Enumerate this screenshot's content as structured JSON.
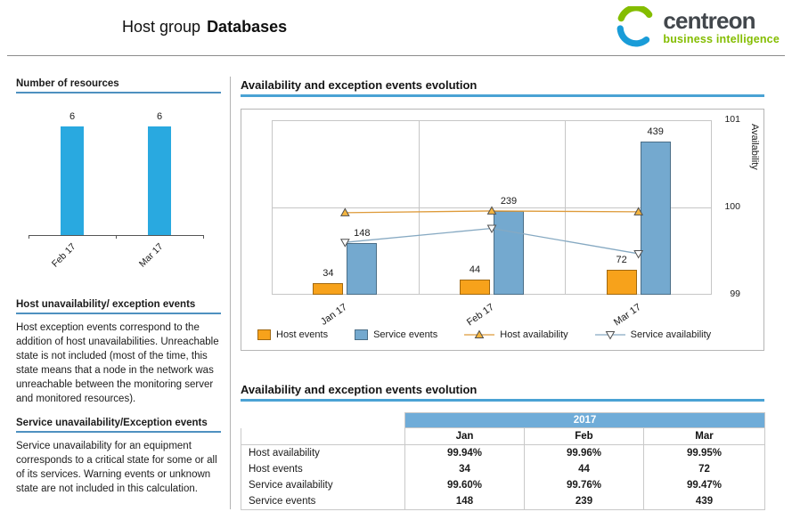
{
  "header": {
    "title_prefix": "Host group",
    "title_name": "Databases",
    "logo": {
      "brand": "centreon",
      "tagline": "business intelligence",
      "brand_color": "#42474c",
      "tagline_color": "#84BD00",
      "mark_green": "#84BD00",
      "mark_blue": "#199CD8"
    }
  },
  "sidebar": {
    "resources_title": "Number of resources",
    "host_events_title": "Host unavailability/ exception events",
    "host_events_body": "Host exception events correspond to the addition of host unavailabilities. Unreachable state is not included (most of the time, this state means that a node in the network was unreachable between the monitoring server and monitored resources).",
    "service_events_title": "Service unavailability/Exception events",
    "service_events_body": "Service unavailability for an equipment corresponds to a critical state for some or all of its services. Warning events or unknown state are not included in this calculation."
  },
  "main": {
    "chart_section_title": "Availability and exception events evolution",
    "table_section_title": "Availability and exception events evolution"
  },
  "chart_data": [
    {
      "type": "bar",
      "title": "Number of resources",
      "categories": [
        "Feb 17",
        "Mar 17"
      ],
      "values": [
        6,
        6
      ],
      "bar_color": "#29A9E0",
      "ylim": [
        0,
        6
      ]
    },
    {
      "type": "bar",
      "title": "Availability and exception events evolution",
      "categories": [
        "Jan 17",
        "Feb 17",
        "Mar 17"
      ],
      "series": [
        {
          "name": "Host events",
          "kind": "bar",
          "axis": "left",
          "color": "#F7A21B",
          "values": [
            34,
            44,
            72
          ]
        },
        {
          "name": "Service events",
          "kind": "bar",
          "axis": "left",
          "color": "#74A9CF",
          "values": [
            148,
            239,
            439
          ]
        },
        {
          "name": "Host availability",
          "kind": "line",
          "axis": "right",
          "color": "#DE9B3A",
          "marker": "triangle-up",
          "marker_fill": "#F5B53E",
          "values": [
            99.94,
            99.96,
            99.95
          ]
        },
        {
          "name": "Service availability",
          "kind": "line",
          "axis": "right",
          "color": "#86A9C2",
          "marker": "triangle-down",
          "marker_fill": "#FFFFFF",
          "values": [
            99.6,
            99.76,
            99.47
          ]
        }
      ],
      "left_axis": {
        "range": [
          0,
          500
        ],
        "labels_visible": false
      },
      "right_axis": {
        "label": "Availability",
        "ticks": [
          101,
          100,
          99
        ],
        "range": [
          99,
          101
        ]
      },
      "legend_position": "bottom",
      "grid": true
    }
  ],
  "table": {
    "year_header": "2017",
    "month_columns": [
      "Jan",
      "Feb",
      "Mar"
    ],
    "rows": [
      {
        "label": "Host availability",
        "values": [
          "99.94%",
          "99.96%",
          "99.95%"
        ]
      },
      {
        "label": "Host events",
        "values": [
          "34",
          "44",
          "72"
        ]
      },
      {
        "label": "Service availability",
        "values": [
          "99.60%",
          "99.76%",
          "99.47%"
        ]
      },
      {
        "label": "Service events",
        "values": [
          "148",
          "239",
          "439"
        ]
      }
    ]
  }
}
